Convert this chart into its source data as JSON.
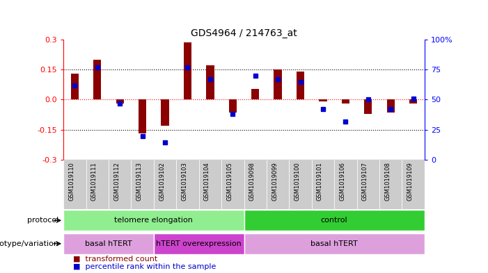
{
  "title": "GDS4964 / 214763_at",
  "samples": [
    "GSM1019110",
    "GSM1019111",
    "GSM1019112",
    "GSM1019113",
    "GSM1019102",
    "GSM1019103",
    "GSM1019104",
    "GSM1019105",
    "GSM1019098",
    "GSM1019099",
    "GSM1019100",
    "GSM1019101",
    "GSM1019106",
    "GSM1019107",
    "GSM1019108",
    "GSM1019109"
  ],
  "transformed_count": [
    0.13,
    0.2,
    -0.02,
    -0.17,
    -0.13,
    0.285,
    0.17,
    -0.065,
    0.055,
    0.15,
    0.14,
    -0.01,
    -0.02,
    -0.07,
    -0.065,
    -0.02
  ],
  "percentile_rank": [
    62,
    77,
    47,
    19.5,
    14.5,
    77,
    67,
    38,
    70,
    67,
    65,
    42,
    32,
    50,
    42,
    51
  ],
  "bar_color": "#8B0000",
  "dot_color": "#0000CD",
  "ylim_left": [
    -0.3,
    0.3
  ],
  "ylim_right": [
    0,
    100
  ],
  "yticks_left": [
    -0.3,
    -0.15,
    0.0,
    0.15,
    0.3
  ],
  "yticks_right": [
    0,
    25,
    50,
    75,
    100
  ],
  "hline_y": [
    0.15,
    0.0,
    -0.15
  ],
  "hline_colors": [
    "black",
    "red",
    "black"
  ],
  "hline_styles": [
    "dotted",
    "dotted",
    "dotted"
  ],
  "protocol_groups": [
    {
      "label": "telomere elongation",
      "start": 0,
      "end": 7,
      "color": "#90EE90"
    },
    {
      "label": "control",
      "start": 8,
      "end": 15,
      "color": "#32CD32"
    }
  ],
  "genotype_groups": [
    {
      "label": "basal hTERT",
      "start": 0,
      "end": 3,
      "color": "#DDA0DD"
    },
    {
      "label": "hTERT overexpression",
      "start": 4,
      "end": 7,
      "color": "#CC44CC"
    },
    {
      "label": "basal hTERT",
      "start": 8,
      "end": 15,
      "color": "#DDA0DD"
    }
  ],
  "legend_items": [
    {
      "label": "transformed count",
      "color": "#8B0000"
    },
    {
      "label": "percentile rank within the sample",
      "color": "#0000CD"
    }
  ],
  "background_color": "#ffffff",
  "plot_bg_color": "#ffffff",
  "tick_bg_color": "#cccccc"
}
